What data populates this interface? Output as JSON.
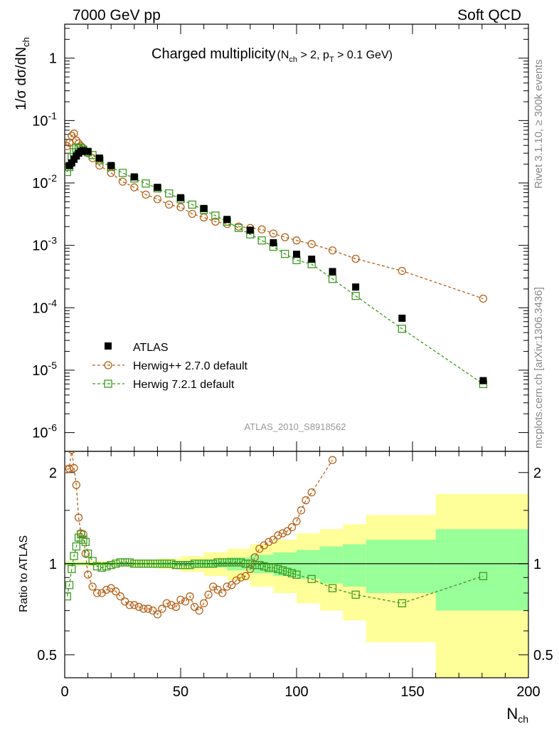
{
  "header": {
    "left": "7000 GeV pp",
    "right": "Soft QCD"
  },
  "side_texts": {
    "rivet": "Rivet 3.1.10, ≥ 300k events",
    "mcplots": "mcplots.cern.ch [arXiv:1306.3436]"
  },
  "analysis_tag": "ATLAS_2010_S8918562",
  "chart_data": [
    {
      "type": "scatter",
      "title": "Charged multiplicity",
      "title_suffix": "(N_ch > 2, p_T > 0.1 GeV)",
      "ylabel": "1/σ dσ/dN_ch",
      "xlim": [
        0,
        200
      ],
      "ylim": [
        5e-07,
        3.5
      ],
      "log_y": true,
      "y_tick_labels": [
        "10^-6",
        "10^-5",
        "10^-4",
        "10^-3",
        "10^-2",
        "10^-1",
        "1"
      ],
      "legend_position": "bottom-left",
      "series": [
        {
          "name": "ATLAS",
          "color": "#000000",
          "marker": "filled-square",
          "x": [
            2,
            3,
            4,
            5,
            6,
            7,
            8,
            10,
            15,
            20,
            30,
            40,
            50,
            60,
            70,
            80,
            90,
            100,
            106.5,
            115.5,
            125.5,
            145.5,
            180.5
          ],
          "y": [
            0.019,
            0.021,
            0.024,
            0.027,
            0.03,
            0.032,
            0.033,
            0.032,
            0.025,
            0.019,
            0.0125,
            0.0085,
            0.0058,
            0.0039,
            0.0026,
            0.00175,
            0.0011,
            0.00072,
            0.0006,
            0.00038,
            0.000215,
            6.8e-05,
            6.8e-06
          ]
        },
        {
          "name": "Herwig++ 2.7.0 default",
          "color": "#b8621a",
          "marker": "open-circle",
          "x": [
            1,
            2,
            3,
            4,
            5,
            6,
            7,
            8,
            10,
            12,
            15,
            20,
            25,
            30,
            35,
            40,
            45,
            50,
            55,
            60,
            65,
            70,
            75,
            80,
            85,
            90,
            95,
            100,
            106.5,
            115.5,
            125.5,
            145.5,
            180.5
          ],
          "y": [
            0.039,
            0.044,
            0.057,
            0.062,
            0.048,
            0.043,
            0.039,
            0.036,
            0.03,
            0.025,
            0.019,
            0.0145,
            0.0105,
            0.0085,
            0.0065,
            0.0055,
            0.0045,
            0.0041,
            0.0032,
            0.0028,
            0.0024,
            0.0022,
            0.002,
            0.0019,
            0.0018,
            0.00155,
            0.00135,
            0.0012,
            0.00105,
            0.00083,
            0.00061,
            0.00039,
            0.00014
          ]
        },
        {
          "name": "Herwig 7.2.1 default",
          "color": "#3b9b1f",
          "marker": "open-square",
          "x": [
            1,
            2,
            3,
            4,
            5,
            6,
            7,
            8,
            10,
            12,
            15,
            20,
            25,
            30,
            35,
            40,
            45,
            50,
            55,
            60,
            65,
            70,
            75,
            80,
            85,
            90,
            95,
            100,
            106.5,
            115.5,
            125.5,
            145.5,
            180.5
          ],
          "y": [
            0.015,
            0.018,
            0.026,
            0.031,
            0.036,
            0.037,
            0.036,
            0.034,
            0.031,
            0.028,
            0.023,
            0.018,
            0.0145,
            0.0118,
            0.0098,
            0.0082,
            0.0068,
            0.0055,
            0.0045,
            0.0037,
            0.003,
            0.0024,
            0.0019,
            0.0015,
            0.0012,
            0.00095,
            0.00073,
            0.00058,
            0.0005,
            0.00029,
            0.000155,
            4.6e-05,
            6e-06
          ]
        }
      ]
    },
    {
      "type": "scatter",
      "ylabel": "Ratio to ATLAS",
      "xlabel": "N_ch",
      "xlim": [
        0,
        200
      ],
      "ylim": [
        0.42,
        2.35
      ],
      "y_ticks": [
        0.5,
        1,
        2
      ],
      "x_ticks": [
        0,
        50,
        100,
        150,
        200
      ],
      "uncertainty_bands": {
        "x_edges": [
          0,
          10,
          20,
          30,
          40,
          50,
          60,
          70,
          80,
          90,
          100,
          110,
          120,
          130,
          160,
          200
        ],
        "inner_half_width": [
          0.01,
          0.01,
          0.01,
          0.01,
          0.015,
          0.02,
          0.03,
          0.05,
          0.07,
          0.09,
          0.11,
          0.14,
          0.16,
          0.2,
          0.3
        ],
        "outer_half_width": [
          0.02,
          0.02,
          0.02,
          0.03,
          0.04,
          0.06,
          0.09,
          0.12,
          0.16,
          0.2,
          0.26,
          0.3,
          0.35,
          0.45,
          0.7
        ],
        "inner_color": "#99ff99",
        "outer_color": "#ffff99"
      },
      "series": [
        {
          "name": "Herwig++ 2.7.0 default",
          "color": "#b8621a",
          "marker": "open-circle",
          "x": [
            1,
            2,
            3,
            4,
            5,
            6,
            7,
            8,
            9,
            10,
            12,
            14,
            16,
            18,
            20,
            22,
            24,
            26,
            28,
            30,
            32,
            34,
            36,
            38,
            40,
            42,
            44,
            46,
            48,
            50,
            52,
            54,
            56,
            58,
            60,
            62,
            64,
            66,
            68,
            70,
            72,
            74,
            76,
            78,
            80,
            82,
            84,
            86,
            88,
            90,
            92,
            94,
            96,
            98,
            100,
            102,
            104,
            106.5,
            115.5
          ],
          "y": [
            2.05,
            2.06,
            2.38,
            2.07,
            1.82,
            1.42,
            1.26,
            1.25,
            1.08,
            0.92,
            0.84,
            0.8,
            0.8,
            0.82,
            0.83,
            0.81,
            0.78,
            0.75,
            0.73,
            0.73,
            0.72,
            0.71,
            0.71,
            0.7,
            0.68,
            0.71,
            0.74,
            0.73,
            0.72,
            0.76,
            0.75,
            0.78,
            0.72,
            0.7,
            0.74,
            0.79,
            0.84,
            0.82,
            0.8,
            0.84,
            0.85,
            0.88,
            0.9,
            0.91,
            0.96,
            1.05,
            1.12,
            1.15,
            1.18,
            1.2,
            1.24,
            1.26,
            1.28,
            1.32,
            1.38,
            1.5,
            1.62,
            1.72,
            2.2
          ]
        },
        {
          "name": "Herwig 7.2.1 default",
          "color": "#3b9b1f",
          "marker": "open-square",
          "x": [
            1,
            2,
            3,
            4,
            5,
            6,
            7,
            8,
            9,
            10,
            12,
            14,
            16,
            18,
            20,
            22,
            24,
            26,
            28,
            30,
            32,
            34,
            36,
            38,
            40,
            42,
            44,
            46,
            48,
            50,
            52,
            54,
            56,
            58,
            60,
            62,
            64,
            66,
            68,
            70,
            72,
            74,
            76,
            78,
            80,
            82,
            84,
            86,
            88,
            90,
            92,
            94,
            96,
            98,
            100,
            106.5,
            115.5,
            125.5,
            145.5,
            180.5
          ],
          "y": [
            0.78,
            0.85,
            0.96,
            1.06,
            1.14,
            1.22,
            1.25,
            1.2,
            1.18,
            1.08,
            1.02,
            0.98,
            0.97,
            0.98,
            0.99,
            1.0,
            1.01,
            1.01,
            1.01,
            1.0,
            1.0,
            1.0,
            1.0,
            1.0,
            1.0,
            1.0,
            1.0,
            1.0,
            0.99,
            0.99,
            0.99,
            0.99,
            1.0,
            1.0,
            1.0,
            1.0,
            1.0,
            1.01,
            1.01,
            1.01,
            1.01,
            1.01,
            1.01,
            1.0,
            1.0,
            0.99,
            0.99,
            0.98,
            0.97,
            0.97,
            0.96,
            0.95,
            0.94,
            0.93,
            0.92,
            0.89,
            0.83,
            0.79,
            0.74,
            0.91
          ]
        }
      ]
    }
  ]
}
